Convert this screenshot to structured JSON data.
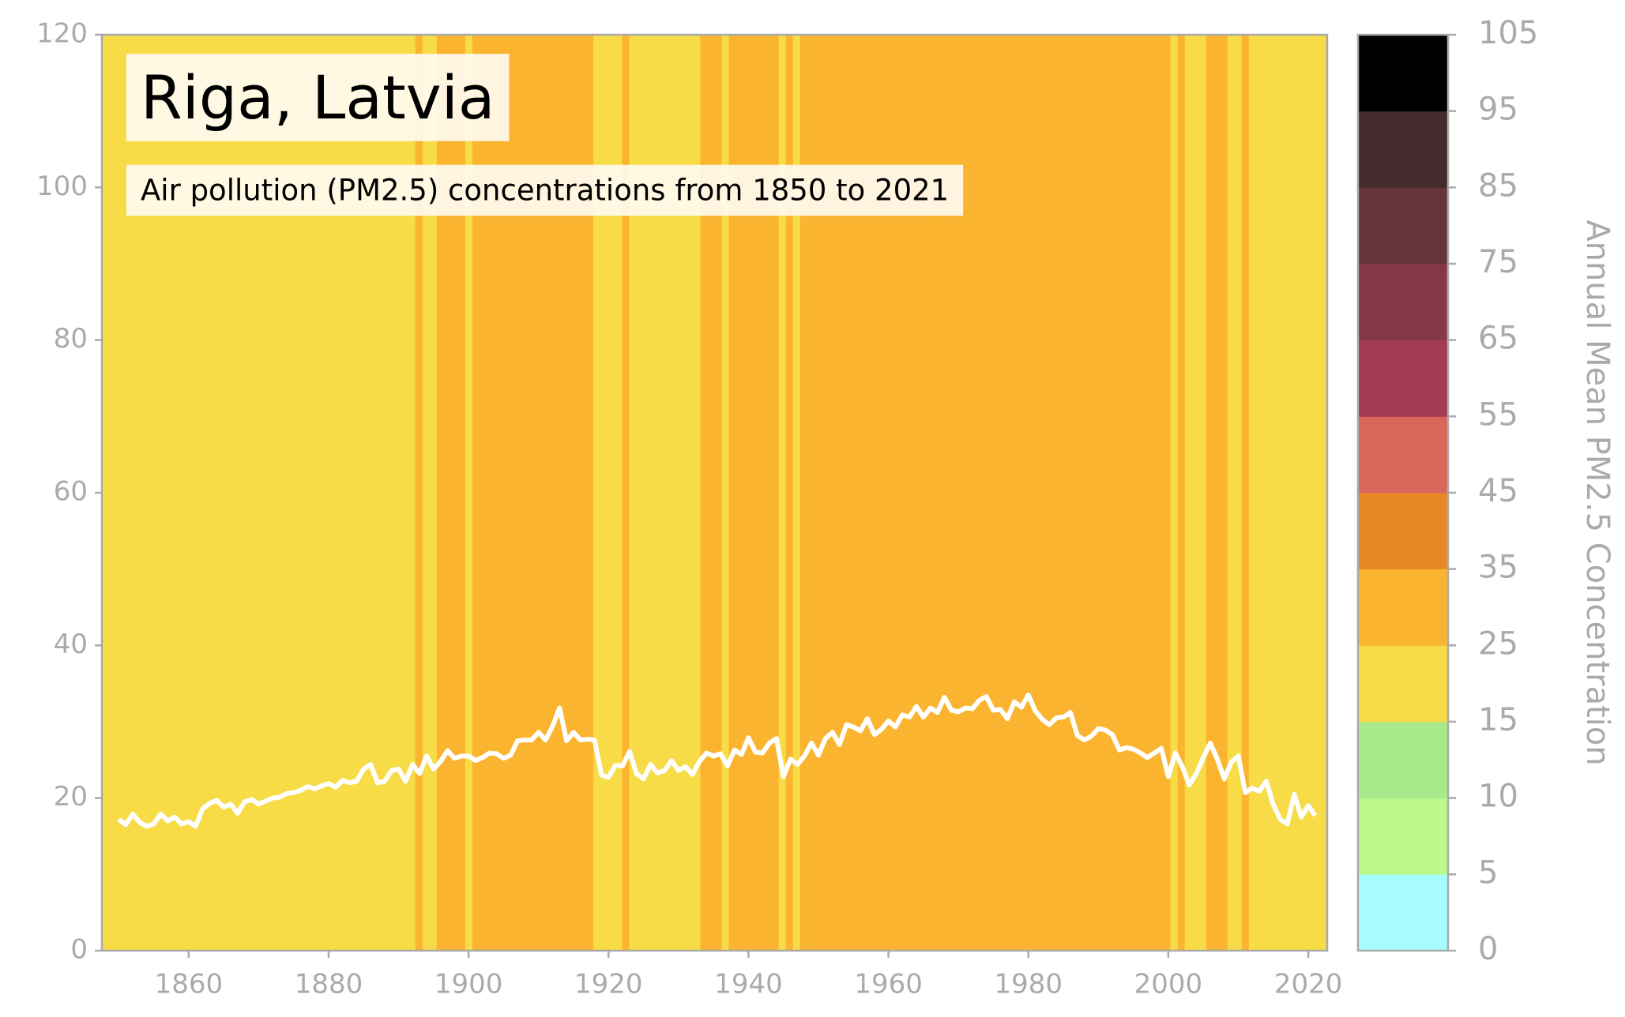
{
  "chart_data": {
    "type": "stripes-line",
    "title": "Riga, Latvia",
    "subtitle": "Air pollution (PM2.5) concentrations from 1850 to 2021",
    "line_color": "#ffffff",
    "xlim": [
      1847.6,
      2022.7
    ],
    "xticks": [
      1860,
      1880,
      1900,
      1920,
      1940,
      1960,
      1980,
      2000,
      2020
    ],
    "ylim": [
      0,
      120
    ],
    "yticks": [
      0,
      20,
      40,
      60,
      80,
      100,
      120
    ],
    "x_start": 1850,
    "values": [
      17.2,
      16.5,
      17.9,
      16.8,
      16.3,
      16.6,
      17.9,
      17.0,
      17.5,
      16.6,
      16.9,
      16.3,
      18.6,
      19.3,
      19.7,
      18.8,
      19.2,
      18.0,
      19.5,
      19.8,
      19.2,
      19.6,
      20.0,
      20.1,
      20.6,
      20.7,
      21.0,
      21.5,
      21.2,
      21.6,
      21.9,
      21.4,
      22.3,
      22.0,
      22.2,
      23.8,
      24.4,
      22.0,
      22.2,
      23.6,
      23.8,
      22.2,
      24.4,
      23.2,
      25.5,
      23.8,
      24.8,
      26.2,
      25.2,
      25.5,
      25.5,
      24.9,
      25.3,
      25.9,
      25.8,
      25.2,
      25.6,
      27.5,
      27.6,
      27.6,
      28.6,
      27.6,
      29.4,
      31.8,
      27.5,
      28.6,
      27.6,
      27.7,
      27.6,
      23.0,
      22.7,
      24.3,
      24.2,
      26.1,
      23.2,
      22.5,
      24.4,
      23.3,
      23.6,
      24.9,
      23.6,
      24.1,
      23.1,
      24.8,
      25.9,
      25.5,
      25.8,
      24.2,
      26.3,
      25.7,
      27.9,
      26.0,
      25.9,
      27.2,
      27.8,
      22.8,
      25.1,
      24.4,
      25.5,
      27.2,
      25.6,
      27.8,
      28.6,
      27.0,
      29.6,
      29.3,
      28.8,
      30.4,
      28.3,
      29.0,
      30.1,
      29.3,
      30.9,
      30.6,
      32.0,
      30.6,
      31.8,
      31.2,
      33.2,
      31.5,
      31.3,
      31.8,
      31.7,
      32.8,
      33.3,
      31.5,
      31.6,
      30.4,
      32.6,
      31.9,
      33.5,
      31.4,
      30.3,
      29.6,
      30.5,
      30.6,
      31.2,
      28.2,
      27.6,
      28.1,
      29.1,
      28.9,
      28.3,
      26.3,
      26.6,
      26.4,
      25.9,
      25.3,
      25.9,
      26.5,
      22.8,
      25.9,
      24.1,
      21.7,
      23.2,
      25.3,
      27.2,
      25.1,
      22.5,
      24.7,
      25.5,
      20.7,
      21.3,
      20.9,
      22.2,
      19.1,
      17.2,
      16.6,
      20.5,
      17.5,
      19.0,
      17.7
    ],
    "colorbar": {
      "label": "Annual Mean PM2.5 Concentration",
      "boundaries": [
        0,
        5,
        10,
        15,
        25,
        35,
        45,
        55,
        65,
        75,
        85,
        95,
        105
      ],
      "colors": [
        "#a6fcff",
        "#bdfa8e",
        "#a8ea8b",
        "#f7dc48",
        "#fbb42f",
        "#e78a26",
        "#d9685a",
        "#a23c53",
        "#84384a",
        "#65373b",
        "#452b2e",
        "#000000"
      ]
    }
  }
}
